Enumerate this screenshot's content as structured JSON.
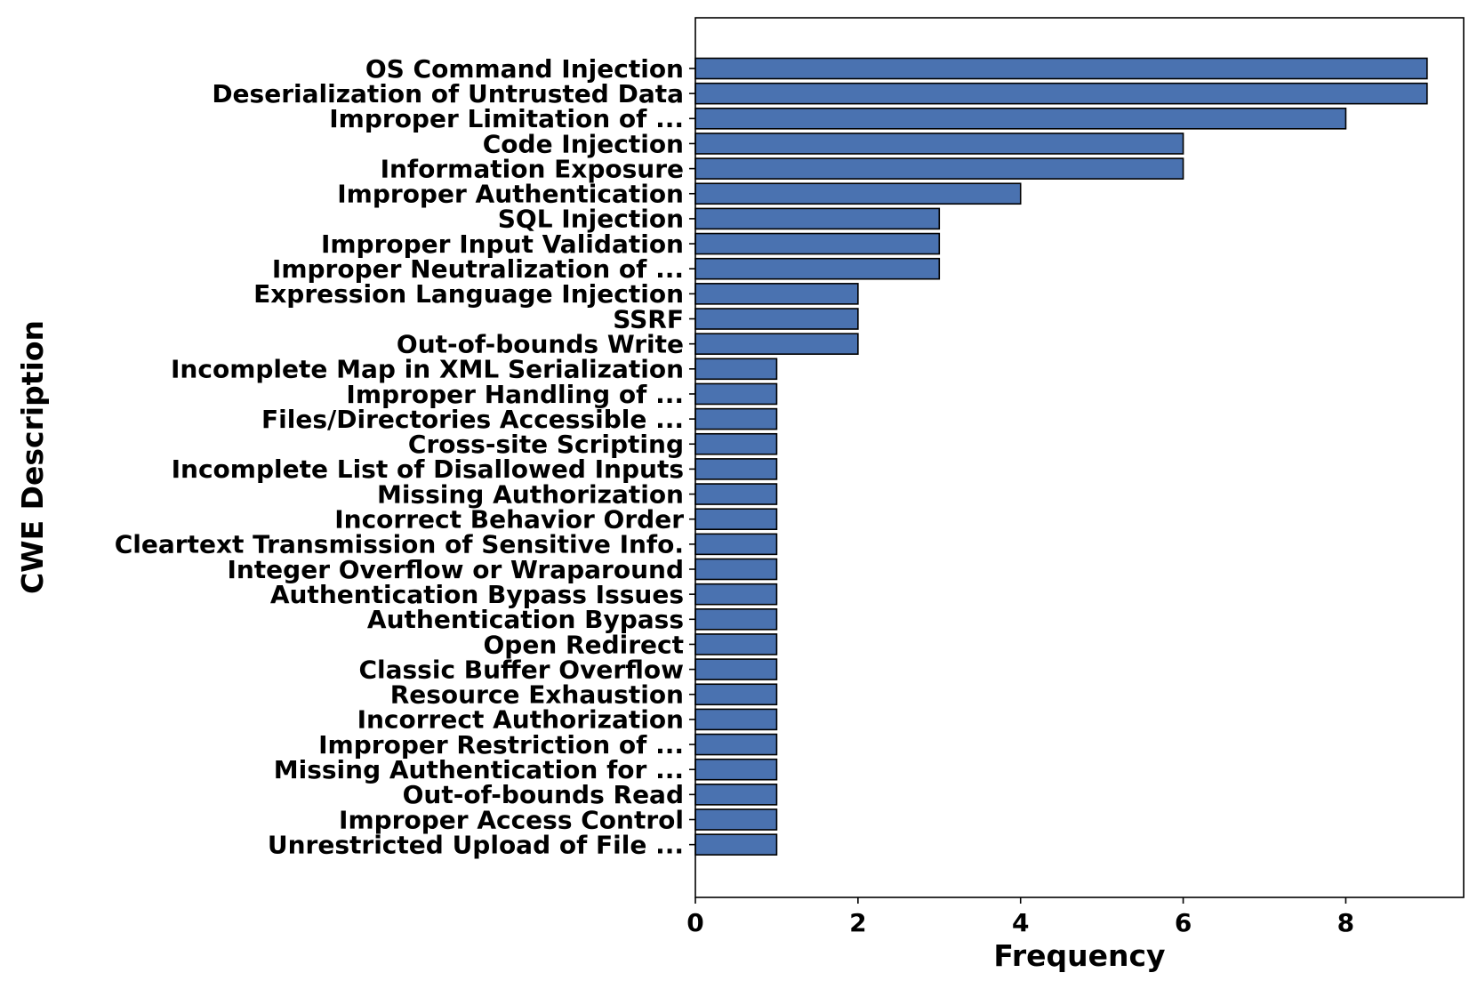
{
  "chart_data": {
    "type": "bar",
    "orientation": "horizontal",
    "title": "",
    "xlabel": "Frequency",
    "ylabel": "CWE Description",
    "xlim": [
      0,
      9.45
    ],
    "xticks": [
      0,
      2,
      4,
      6,
      8
    ],
    "grid": false,
    "legend": "none",
    "bar_color": "#4a72b0",
    "edge_color": "#000000",
    "categories": [
      "OS Command Injection",
      "Deserialization of Untrusted Data",
      "Improper Limitation of ...",
      "Code Injection",
      "Information Exposure",
      "Improper Authentication",
      "SQL Injection",
      "Improper Input Validation",
      "Improper Neutralization of ...",
      "Expression Language Injection",
      "SSRF",
      "Out-of-bounds Write",
      "Incomplete Map in XML Serialization",
      "Improper Handling of ...",
      "Files/Directories Accessible ...",
      "Cross-site Scripting",
      "Incomplete List of Disallowed Inputs",
      "Missing Authorization",
      "Incorrect Behavior Order",
      "Cleartext Transmission of Sensitive Info.",
      "Integer Overflow or Wraparound",
      "Authentication Bypass Issues",
      "Authentication Bypass",
      "Open Redirect",
      "Classic Buffer Overflow",
      "Resource Exhaustion",
      "Incorrect Authorization",
      "Improper Restriction of ...",
      "Missing Authentication for ...",
      "Out-of-bounds Read",
      "Improper Access Control",
      "Unrestricted Upload of File ..."
    ],
    "values": [
      9,
      9,
      8,
      6,
      6,
      4,
      3,
      3,
      3,
      2,
      2,
      2,
      1,
      1,
      1,
      1,
      1,
      1,
      1,
      1,
      1,
      1,
      1,
      1,
      1,
      1,
      1,
      1,
      1,
      1,
      1,
      1
    ]
  }
}
